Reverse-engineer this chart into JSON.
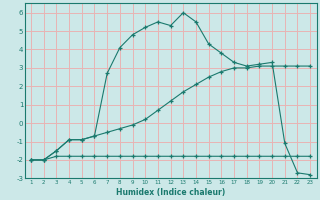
{
  "xlabel": "Humidex (Indice chaleur)",
  "x": [
    1,
    2,
    3,
    4,
    5,
    6,
    7,
    8,
    9,
    10,
    11,
    12,
    13,
    14,
    15,
    16,
    17,
    18,
    19,
    20,
    21,
    22,
    23
  ],
  "line1": [
    -2.0,
    -2.0,
    -1.8,
    -1.8,
    -1.8,
    -1.8,
    -1.8,
    -1.8,
    -1.8,
    -1.8,
    -1.8,
    -1.8,
    -1.8,
    -1.8,
    -1.8,
    -1.8,
    -1.8,
    -1.8,
    -1.8,
    -1.8,
    -1.8,
    -1.8,
    -1.8
  ],
  "line2": [
    -2.0,
    -2.0,
    -1.5,
    -0.9,
    -0.9,
    -0.7,
    2.7,
    4.1,
    4.8,
    5.2,
    5.5,
    5.3,
    6.0,
    5.5,
    4.3,
    3.8,
    3.3,
    3.1,
    3.2,
    3.3,
    -1.1,
    -2.7,
    -2.8
  ],
  "line3": [
    -2.0,
    -2.0,
    -1.5,
    -0.9,
    -0.9,
    -0.7,
    -0.5,
    -0.3,
    -0.1,
    0.2,
    0.7,
    1.2,
    1.7,
    2.1,
    2.5,
    2.8,
    3.0,
    3.0,
    3.1,
    3.1,
    3.1,
    3.1,
    3.1
  ],
  "line_color": "#1a7a6e",
  "bg_color": "#cce8e8",
  "grid_color": "#e8b4b4",
  "ylim": [
    -3,
    6.5
  ],
  "yticks": [
    -3,
    -2,
    -1,
    0,
    1,
    2,
    3,
    4,
    5,
    6
  ],
  "xlim": [
    0.5,
    23.5
  ],
  "xticks": [
    1,
    2,
    3,
    4,
    5,
    6,
    7,
    8,
    9,
    10,
    11,
    12,
    13,
    14,
    15,
    16,
    17,
    18,
    19,
    20,
    21,
    22,
    23
  ]
}
